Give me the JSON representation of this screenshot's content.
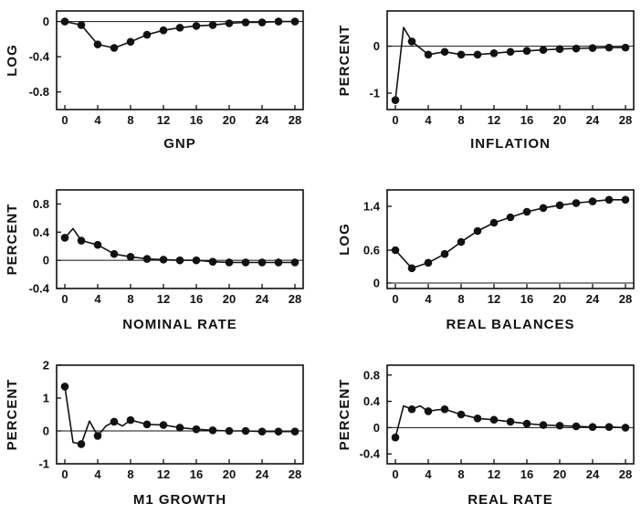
{
  "chart_data": [
    {
      "type": "line",
      "title": "",
      "xlabel": "GNP",
      "ylabel": "LOG",
      "xlim": [
        -1,
        29
      ],
      "ylim": [
        -1.0,
        0.12
      ],
      "xticks": [
        0,
        4,
        8,
        12,
        16,
        20,
        24,
        28
      ],
      "yticks": [
        0,
        -0.4,
        -0.8
      ],
      "ytick_labels": [
        "0",
        "-0.4",
        "-0.8"
      ],
      "grid": false,
      "zero_line": true,
      "series": [
        {
          "x": [
            0,
            2,
            4,
            6,
            8,
            10,
            12,
            14,
            16,
            18,
            20,
            22,
            24,
            26,
            28
          ],
          "y": [
            0.0,
            -0.04,
            -0.26,
            -0.3,
            -0.23,
            -0.15,
            -0.1,
            -0.07,
            -0.05,
            -0.04,
            -0.02,
            -0.01,
            -0.01,
            0.0,
            0.0
          ]
        }
      ]
    },
    {
      "type": "line",
      "title": "",
      "xlabel": "INFLATION",
      "ylabel": "PERCENT",
      "xlim": [
        -1,
        29
      ],
      "ylim": [
        -1.35,
        0.75
      ],
      "xticks": [
        0,
        4,
        8,
        12,
        16,
        20,
        24,
        28
      ],
      "yticks": [
        0,
        -1
      ],
      "ytick_labels": [
        "0",
        "-1"
      ],
      "grid": false,
      "zero_line": true,
      "series": [
        {
          "x": [
            0,
            1,
            2,
            4,
            6,
            8,
            10,
            12,
            14,
            16,
            18,
            20,
            22,
            24,
            26,
            28
          ],
          "y": [
            -1.15,
            0.4,
            0.1,
            -0.18,
            -0.12,
            -0.18,
            -0.18,
            -0.15,
            -0.12,
            -0.1,
            -0.08,
            -0.06,
            -0.05,
            -0.04,
            -0.03,
            -0.03
          ]
        }
      ]
    },
    {
      "type": "line",
      "title": "",
      "xlabel": "NOMINAL RATE",
      "ylabel": "PERCENT",
      "xlim": [
        -1,
        29
      ],
      "ylim": [
        -0.4,
        1.0
      ],
      "xticks": [
        0,
        4,
        8,
        12,
        16,
        20,
        24,
        28
      ],
      "yticks": [
        0.8,
        0.4,
        0,
        -0.4
      ],
      "ytick_labels": [
        "0.8",
        "0.4",
        "0",
        "-0.4"
      ],
      "grid": false,
      "zero_line": true,
      "series": [
        {
          "x": [
            0,
            1,
            2,
            4,
            6,
            8,
            10,
            12,
            14,
            16,
            18,
            20,
            22,
            24,
            26,
            28
          ],
          "y": [
            0.32,
            0.45,
            0.28,
            0.22,
            0.09,
            0.05,
            0.02,
            0.01,
            0.0,
            0.0,
            -0.02,
            -0.03,
            -0.03,
            -0.03,
            -0.03,
            -0.03
          ]
        }
      ]
    },
    {
      "type": "line",
      "title": "",
      "xlabel": "REAL BALANCES",
      "ylabel": "LOG",
      "xlim": [
        -1,
        29
      ],
      "ylim": [
        -0.1,
        1.7
      ],
      "xticks": [
        0,
        4,
        8,
        12,
        16,
        20,
        24,
        28
      ],
      "yticks": [
        1.4,
        0.6,
        0
      ],
      "ytick_labels": [
        "1.4",
        "0.6",
        "0"
      ],
      "grid": false,
      "zero_line": true,
      "series": [
        {
          "x": [
            0,
            2,
            4,
            6,
            8,
            10,
            12,
            14,
            16,
            18,
            20,
            22,
            24,
            26,
            28
          ],
          "y": [
            0.6,
            0.27,
            0.37,
            0.53,
            0.75,
            0.95,
            1.1,
            1.2,
            1.3,
            1.37,
            1.42,
            1.46,
            1.49,
            1.52,
            1.52
          ]
        }
      ]
    },
    {
      "type": "line",
      "title": "",
      "xlabel": "M1 GROWTH",
      "ylabel": "PERCENT",
      "xlim": [
        -1,
        29
      ],
      "ylim": [
        -1.0,
        2.0
      ],
      "xticks": [
        0,
        4,
        8,
        12,
        16,
        20,
        24,
        28
      ],
      "yticks": [
        2,
        1,
        0,
        -1
      ],
      "ytick_labels": [
        "2",
        "1",
        "0",
        "-1"
      ],
      "grid": false,
      "zero_line": true,
      "series": [
        {
          "x": [
            0,
            1,
            2,
            3,
            4,
            5,
            6,
            7,
            8,
            10,
            12,
            14,
            16,
            18,
            20,
            22,
            24,
            26,
            28
          ],
          "y": [
            1.35,
            -0.35,
            -0.4,
            0.3,
            -0.15,
            0.15,
            0.28,
            0.15,
            0.33,
            0.2,
            0.18,
            0.1,
            0.05,
            0.02,
            0.0,
            0.0,
            -0.02,
            -0.02,
            -0.02
          ]
        }
      ]
    },
    {
      "type": "line",
      "title": "",
      "xlabel": "REAL RATE",
      "ylabel": "PERCENT",
      "xlim": [
        -1,
        29
      ],
      "ylim": [
        -0.55,
        0.95
      ],
      "xticks": [
        0,
        4,
        8,
        12,
        16,
        20,
        24,
        28
      ],
      "yticks": [
        0.8,
        0.4,
        0,
        -0.4
      ],
      "ytick_labels": [
        "0.8",
        "0.4",
        "0",
        "-0.4"
      ],
      "grid": false,
      "zero_line": true,
      "series": [
        {
          "x": [
            0,
            1,
            2,
            3,
            4,
            5,
            6,
            8,
            10,
            12,
            14,
            16,
            18,
            20,
            22,
            24,
            26,
            28
          ],
          "y": [
            -0.15,
            0.33,
            0.28,
            0.33,
            0.25,
            0.27,
            0.28,
            0.2,
            0.14,
            0.12,
            0.09,
            0.06,
            0.04,
            0.03,
            0.02,
            0.01,
            0.01,
            0.0
          ]
        }
      ]
    }
  ]
}
